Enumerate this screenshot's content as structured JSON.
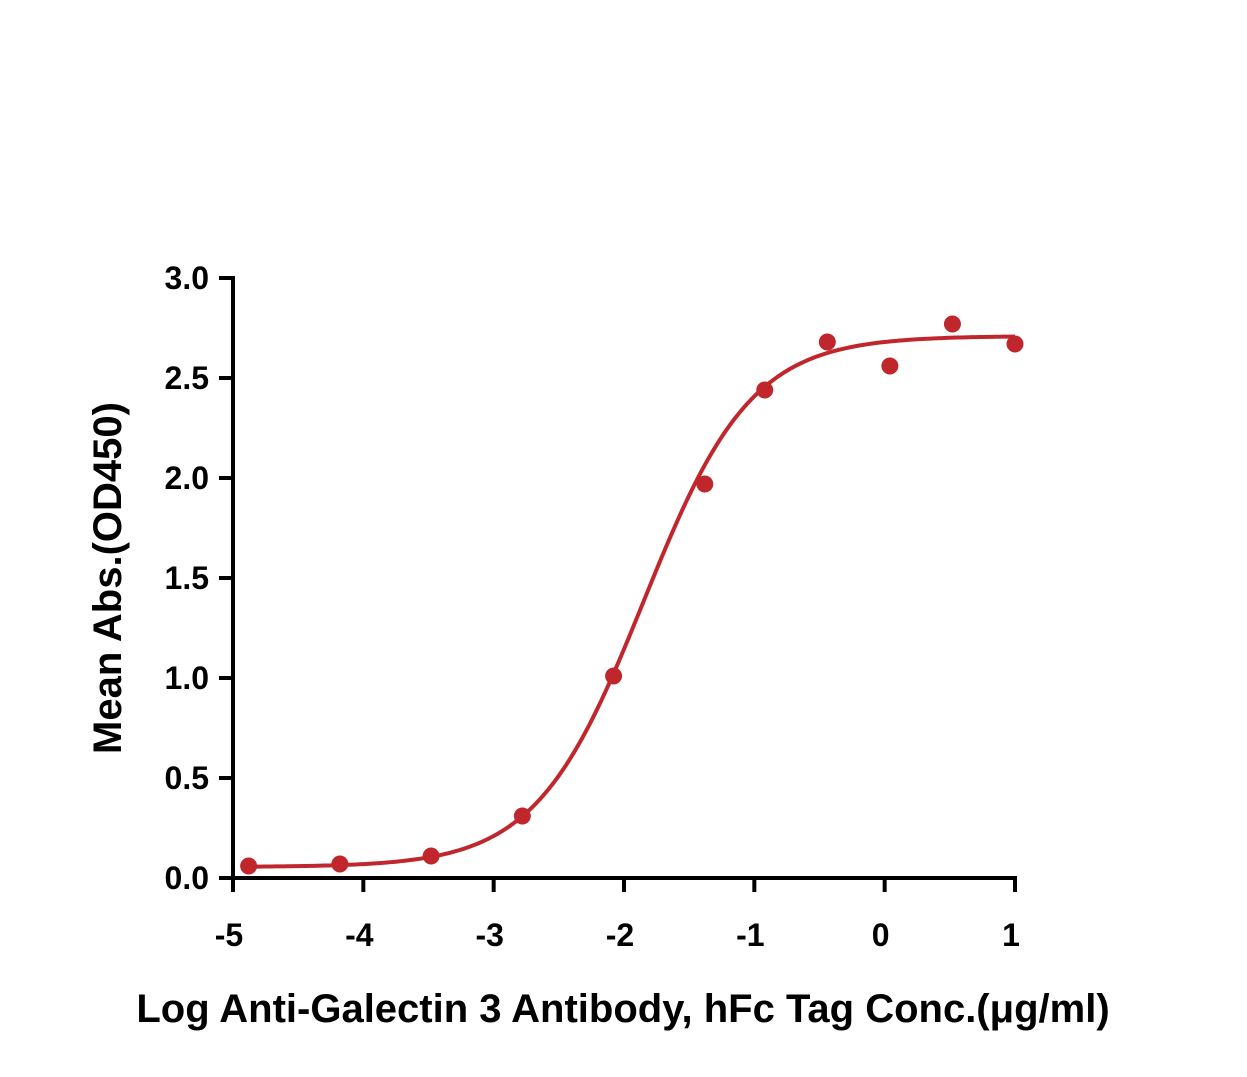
{
  "chart_data": {
    "type": "scatter",
    "title": "",
    "xlabel": "Log Anti-Galectin 3 Antibody, hFc Tag Conc.(μg/ml)",
    "ylabel": "Mean Abs.(OD450)",
    "xlim": [
      -5,
      1
    ],
    "ylim": [
      0,
      3.0
    ],
    "x_ticks": [
      -5,
      -4,
      -3,
      -2,
      -1,
      0,
      1
    ],
    "x_tick_labels": [
      "-5",
      "-4",
      "-3",
      "-2",
      "-1",
      "0",
      "1"
    ],
    "y_ticks": [
      0,
      0.5,
      1.0,
      1.5,
      2.0,
      2.5,
      3.0
    ],
    "y_tick_labels": [
      "0.0",
      "0.5",
      "1.0",
      "1.5",
      "2.0",
      "2.5",
      "3.0"
    ],
    "grid": false,
    "color": "#c0272d",
    "series": [
      {
        "x": [
          -4.88,
          -4.18,
          -3.48,
          -2.78,
          -2.08,
          -1.38,
          -0.92,
          -0.44,
          0.04,
          0.52,
          1.0
        ],
        "y": [
          0.06,
          0.07,
          0.11,
          0.31,
          1.01,
          1.97,
          2.44,
          2.68,
          2.56,
          2.77,
          2.67
        ]
      }
    ],
    "fit": {
      "model": "4PL",
      "bottom": 0.055,
      "top": 2.71,
      "log_ec50": -1.85,
      "hill_slope": 1.05
    }
  }
}
